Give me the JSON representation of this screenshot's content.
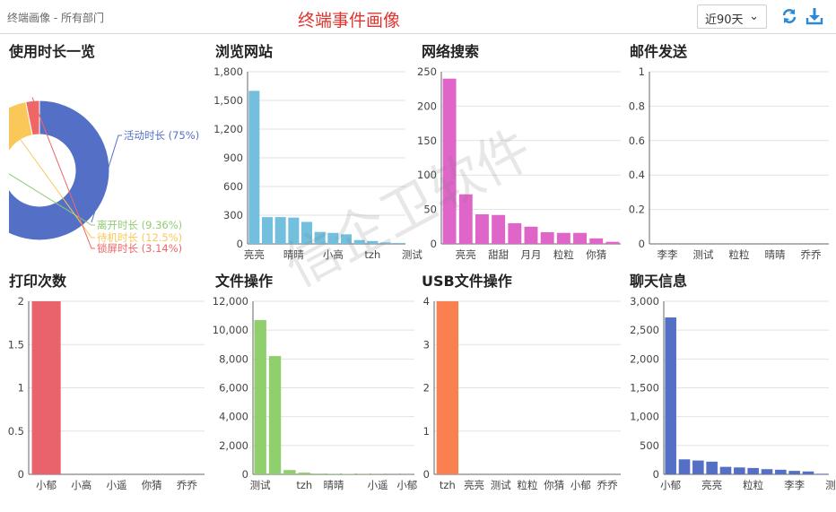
{
  "header": {
    "breadcrumb": "终端画像 - 所有部门",
    "title": "终端事件画像",
    "range_value": "近90天",
    "range_chevron": "⌄",
    "refresh_icon": "refresh-icon",
    "download_icon": "download-icon"
  },
  "watermark": "信企卫软件",
  "colors": {
    "usage": [
      "#5470c6",
      "#91cc75",
      "#fac858",
      "#ee6666"
    ],
    "browse": "#73c0de",
    "search": "#e065c8",
    "print": "#e8636b",
    "file": "#8fcf6e",
    "usb": "#fa8050",
    "chat": "#5470c6"
  },
  "chart_data": [
    {
      "id": "usage",
      "type": "pie",
      "title": "使用时长一览",
      "slices": [
        {
          "name": "活动时长",
          "value": 75,
          "label": "活动时长 (75%)"
        },
        {
          "name": "离开时长",
          "value": 9.36,
          "label": "离开时长 (9.36%)"
        },
        {
          "name": "待机时长",
          "value": 12.5,
          "label": "待机时长 (12.5%)"
        },
        {
          "name": "锁屏时长",
          "value": 3.14,
          "label": "锁屏时长 (3.14%)"
        }
      ]
    },
    {
      "id": "browse",
      "type": "bar",
      "title": "浏览网站",
      "ylim": [
        0,
        1800
      ],
      "yticks": [
        "0",
        "300",
        "600",
        "900",
        "1,200",
        "1,500",
        "1,800"
      ],
      "ytick_values": [
        0,
        300,
        600,
        900,
        1200,
        1500,
        1800
      ],
      "values": [
        1600,
        280,
        280,
        275,
        230,
        125,
        115,
        100,
        40,
        30,
        15,
        10
      ],
      "xlabels": [
        {
          "i": 0,
          "text": "亮亮"
        },
        {
          "i": 3,
          "text": "晴晴"
        },
        {
          "i": 6,
          "text": "小高"
        },
        {
          "i": 9,
          "text": "tzh"
        },
        {
          "i": 12,
          "text": "测试"
        }
      ]
    },
    {
      "id": "search",
      "type": "bar",
      "title": "网络搜索",
      "ylim": [
        0,
        250
      ],
      "yticks": [
        "0",
        "50",
        "100",
        "150",
        "200",
        "250"
      ],
      "ytick_values": [
        0,
        50,
        100,
        150,
        200,
        250
      ],
      "values": [
        240,
        72,
        43,
        42,
        30,
        25,
        17,
        16,
        16,
        8,
        3
      ],
      "xlabels": [
        {
          "i": 1,
          "text": "亮亮"
        },
        {
          "i": 3,
          "text": "甜甜"
        },
        {
          "i": 5,
          "text": "月月"
        },
        {
          "i": 7,
          "text": "粒粒"
        },
        {
          "i": 9,
          "text": "你猜"
        }
      ]
    },
    {
      "id": "mail",
      "type": "bar",
      "title": "邮件发送",
      "ylim": [
        0,
        1
      ],
      "yticks": [
        "0",
        "0.2",
        "0.4",
        "0.6",
        "0.8",
        "1"
      ],
      "ytick_values": [
        0,
        0.2,
        0.4,
        0.6,
        0.8,
        1
      ],
      "values": [
        0,
        0,
        0,
        0,
        0
      ],
      "xlabels": [
        {
          "i": 0,
          "text": "李李"
        },
        {
          "i": 1,
          "text": "测试"
        },
        {
          "i": 2,
          "text": "粒粒"
        },
        {
          "i": 3,
          "text": "晴晴"
        },
        {
          "i": 4,
          "text": "乔乔"
        }
      ]
    },
    {
      "id": "print",
      "type": "bar",
      "title": "打印次数",
      "ylim": [
        0,
        2
      ],
      "yticks": [
        "0",
        "0.5",
        "1",
        "1.5",
        "2"
      ],
      "ytick_values": [
        0,
        0.5,
        1,
        1.5,
        2
      ],
      "values": [
        2,
        0,
        0,
        0,
        0
      ],
      "xlabels": [
        {
          "i": 0,
          "text": "小郁"
        },
        {
          "i": 1,
          "text": "小高"
        },
        {
          "i": 2,
          "text": "小遥"
        },
        {
          "i": 3,
          "text": "你猜"
        },
        {
          "i": 4,
          "text": "乔乔"
        }
      ]
    },
    {
      "id": "file",
      "type": "bar",
      "title": "文件操作",
      "ylim": [
        0,
        12000
      ],
      "yticks": [
        "0",
        "2,000",
        "4,000",
        "6,000",
        "8,000",
        "10,000",
        "12,000"
      ],
      "ytick_values": [
        0,
        2000,
        4000,
        6000,
        8000,
        10000,
        12000
      ],
      "values": [
        10700,
        8200,
        300,
        120,
        50,
        40,
        30,
        20,
        15,
        10,
        8
      ],
      "xlabels": [
        {
          "i": 0,
          "text": "测试"
        },
        {
          "i": 3,
          "text": "tzh"
        },
        {
          "i": 5,
          "text": "晴晴"
        },
        {
          "i": 8,
          "text": "小遥"
        },
        {
          "i": 10,
          "text": "小郁"
        }
      ]
    },
    {
      "id": "usb",
      "type": "bar",
      "title": "USB文件操作",
      "ylim": [
        0,
        4
      ],
      "yticks": [
        "0",
        "1",
        "2",
        "3",
        "4"
      ],
      "ytick_values": [
        0,
        1,
        2,
        3,
        4
      ],
      "values": [
        4,
        0,
        0,
        0,
        0,
        0,
        0
      ],
      "xlabels": [
        {
          "i": 0,
          "text": "tzh"
        },
        {
          "i": 1,
          "text": "亮亮"
        },
        {
          "i": 2,
          "text": "测试"
        },
        {
          "i": 3,
          "text": "粒粒"
        },
        {
          "i": 4,
          "text": "你猜"
        },
        {
          "i": 5,
          "text": "小郁"
        },
        {
          "i": 6,
          "text": "乔乔"
        }
      ]
    },
    {
      "id": "chat",
      "type": "bar",
      "title": "聊天信息",
      "ylim": [
        0,
        3000
      ],
      "yticks": [
        "0",
        "500",
        "1,000",
        "1,500",
        "2,000",
        "2,500",
        "3,000"
      ],
      "ytick_values": [
        0,
        500,
        1000,
        1500,
        2000,
        2500,
        3000
      ],
      "values": [
        2720,
        260,
        240,
        220,
        130,
        120,
        110,
        90,
        80,
        60,
        50,
        10
      ],
      "xlabels": [
        {
          "i": 0,
          "text": "小郁"
        },
        {
          "i": 3,
          "text": "亮亮"
        },
        {
          "i": 6,
          "text": "粒粒"
        },
        {
          "i": 9,
          "text": "李李"
        },
        {
          "i": 12,
          "text": "测试"
        }
      ]
    }
  ]
}
